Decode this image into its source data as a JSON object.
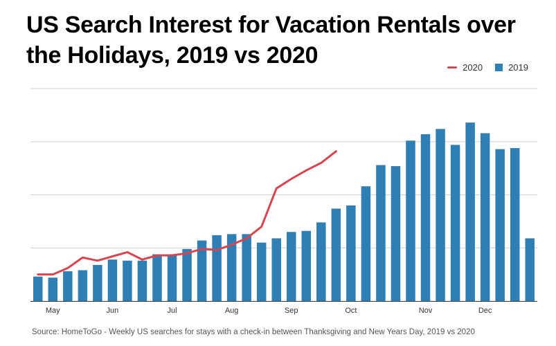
{
  "chart_data": {
    "type": "bar",
    "title": "US Search Interest for Vacation Rentals over the Holidays, 2019 vs 2020",
    "source": "Source: HomeToGo - Weekly US searches for stays with a check-in between Thanksgiving and New Years Day, 2019 vs 2020",
    "xlabel": "",
    "ylabel": "",
    "ylim": [
      0,
      100
    ],
    "grid": true,
    "legend_position": "top-right",
    "month_ticks": [
      {
        "label": "May",
        "week": 1
      },
      {
        "label": "Jun",
        "week": 5
      },
      {
        "label": "Jul",
        "week": 9
      },
      {
        "label": "Aug",
        "week": 13
      },
      {
        "label": "Sep",
        "week": 17
      },
      {
        "label": "Oct",
        "week": 21
      },
      {
        "label": "Nov",
        "week": 26
      },
      {
        "label": "Dec",
        "week": 30
      }
    ],
    "series": [
      {
        "name": "2020",
        "type": "line",
        "color": "#d64550",
        "values": [
          12.5,
          12.5,
          15.5,
          20.5,
          19,
          21,
          23,
          19.5,
          21.5,
          21.5,
          22.5,
          24.5,
          24,
          26.5,
          29.5,
          35,
          53,
          57.5,
          61.5,
          65,
          70.5
        ]
      },
      {
        "name": "2019",
        "type": "bar",
        "color": "#2f7fb5",
        "values": [
          11.5,
          11,
          14,
          14.5,
          17,
          19.5,
          19,
          19,
          22,
          22,
          24.5,
          28.5,
          31,
          31.5,
          31.5,
          27.5,
          29.5,
          32.5,
          33,
          37,
          43.5,
          45,
          54,
          64,
          63.5,
          75.5,
          78.5,
          81,
          73.5,
          84,
          79,
          71.5,
          72,
          29.5
        ]
      }
    ]
  }
}
